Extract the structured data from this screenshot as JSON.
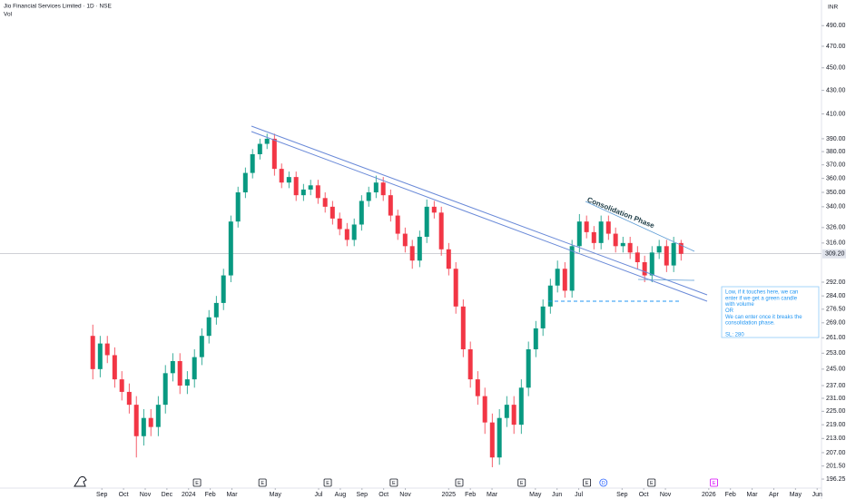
{
  "chart_data": {
    "type": "candlestick",
    "title": "Jio Financial Services Limited · 1D · NSE",
    "volume_label": "Vol",
    "currency": "INR",
    "log_scale": true,
    "grid": false,
    "up_color": "#089981",
    "down_color": "#f23645",
    "xlim": [
      -3.7,
      34.2
    ],
    "xticks": [
      {
        "value": 1,
        "label": "Sep"
      },
      {
        "value": 2,
        "label": "Oct"
      },
      {
        "value": 3,
        "label": "Nov"
      },
      {
        "value": 4,
        "label": "Dec"
      },
      {
        "value": 5,
        "label": "2024"
      },
      {
        "value": 6,
        "label": "Feb"
      },
      {
        "value": 7,
        "label": "Mar"
      },
      {
        "value": 9,
        "label": "May"
      },
      {
        "value": 11,
        "label": "Jul"
      },
      {
        "value": 12,
        "label": "Aug"
      },
      {
        "value": 13,
        "label": "Sep"
      },
      {
        "value": 14,
        "label": "Oct"
      },
      {
        "value": 15,
        "label": "Nov"
      },
      {
        "value": 17,
        "label": "2025"
      },
      {
        "value": 18,
        "label": "Feb"
      },
      {
        "value": 19,
        "label": "Mar"
      },
      {
        "value": 21,
        "label": "May"
      },
      {
        "value": 22,
        "label": "Jun"
      },
      {
        "value": 23,
        "label": "Jul"
      },
      {
        "value": 25,
        "label": "Sep"
      },
      {
        "value": 26,
        "label": "Oct"
      },
      {
        "value": 27,
        "label": "Nov"
      },
      {
        "value": 29,
        "label": "2026"
      },
      {
        "value": 30,
        "label": "Feb"
      },
      {
        "value": 31,
        "label": "Mar"
      },
      {
        "value": 32,
        "label": "Apr"
      },
      {
        "value": 33,
        "label": "May"
      },
      {
        "value": 34,
        "label": "Jun"
      }
    ],
    "ylim": [
      192,
      516
    ],
    "yticks": [
      {
        "value": 490,
        "label": "490.00"
      },
      {
        "value": 470,
        "label": "470.00"
      },
      {
        "value": 450,
        "label": "450.00"
      },
      {
        "value": 430,
        "label": "430.00"
      },
      {
        "value": 410,
        "label": "410.00"
      },
      {
        "value": 390,
        "label": "390.00"
      },
      {
        "value": 380,
        "label": "380.00"
      },
      {
        "value": 370,
        "label": "370.00"
      },
      {
        "value": 360,
        "label": "360.00"
      },
      {
        "value": 350,
        "label": "350.00"
      },
      {
        "value": 340,
        "label": "340.00"
      },
      {
        "value": 326,
        "label": "326.00"
      },
      {
        "value": 316,
        "label": "316.00"
      },
      {
        "value": 292,
        "label": "292.00"
      },
      {
        "value": 284,
        "label": "284.00"
      },
      {
        "value": 276.5,
        "label": "276.50"
      },
      {
        "value": 269,
        "label": "269.00"
      },
      {
        "value": 261,
        "label": "261.00"
      },
      {
        "value": 253,
        "label": "253.00"
      },
      {
        "value": 245,
        "label": "245.00"
      },
      {
        "value": 237,
        "label": "237.00"
      },
      {
        "value": 231,
        "label": "231.00"
      },
      {
        "value": 225,
        "label": "225.00"
      },
      {
        "value": 219,
        "label": "219.00"
      },
      {
        "value": 213,
        "label": "213.00"
      },
      {
        "value": 207,
        "label": "207.00"
      },
      {
        "value": 201.5,
        "label": "201.50"
      },
      {
        "value": 196.25,
        "label": "196.25"
      }
    ],
    "last_price": {
      "value": 309.2,
      "label": "309.20"
    },
    "x": [
      0.58,
      0.92,
      1.25,
      1.59,
      1.92,
      2.26,
      2.59,
      2.93,
      3.26,
      3.6,
      3.93,
      4.27,
      4.6,
      4.94,
      5.27,
      5.61,
      5.94,
      6.28,
      6.61,
      6.95,
      7.28,
      7.62,
      7.95,
      8.29,
      8.62,
      8.96,
      9.29,
      9.63,
      9.96,
      10.3,
      10.63,
      10.97,
      11.3,
      11.64,
      11.97,
      12.31,
      12.64,
      12.98,
      13.31,
      13.65,
      13.98,
      14.32,
      14.65,
      14.99,
      15.32,
      15.66,
      15.99,
      16.33,
      16.66,
      17.0,
      17.33,
      17.67,
      18.0,
      18.34,
      18.67,
      19.01,
      19.34,
      19.68,
      20.01,
      20.35,
      20.68,
      21.02,
      21.35,
      21.69,
      22.02,
      22.36,
      22.69,
      23.03,
      23.36,
      23.7,
      24.03,
      24.37,
      24.7,
      25.04,
      25.37,
      25.71,
      26.04,
      26.38,
      26.71,
      27.05,
      27.38,
      27.72
    ],
    "open": [
      262,
      245,
      258,
      252,
      240,
      234,
      228,
      214,
      222,
      218,
      228,
      243,
      249,
      237,
      240,
      251,
      262,
      272,
      280,
      296,
      330,
      350,
      364,
      378,
      386,
      390,
      367,
      357,
      361,
      348,
      352,
      355,
      346,
      340,
      332,
      325,
      318,
      328,
      344,
      350,
      357,
      348,
      334,
      322,
      314,
      305,
      320,
      340,
      336,
      312,
      300,
      278,
      255,
      240,
      232,
      220,
      205,
      222,
      228,
      219,
      236,
      255,
      266,
      278,
      290,
      300,
      287,
      314,
      330,
      323,
      316,
      330,
      322,
      314,
      316,
      310,
      304,
      296,
      310,
      314,
      302,
      316
    ],
    "high": [
      268,
      262,
      262,
      256,
      244,
      238,
      232,
      226,
      226,
      232,
      247,
      253,
      253,
      244,
      255,
      266,
      276,
      284,
      300,
      334,
      354,
      368,
      382,
      390,
      394,
      394,
      371,
      365,
      365,
      356,
      359,
      359,
      350,
      344,
      336,
      329,
      332,
      348,
      354,
      362,
      361,
      352,
      338,
      326,
      318,
      324,
      345,
      344,
      340,
      316,
      304,
      282,
      259,
      244,
      236,
      224,
      226,
      232,
      232,
      240,
      259,
      270,
      282,
      294,
      305,
      304,
      318,
      335,
      334,
      327,
      334,
      334,
      326,
      320,
      320,
      314,
      308,
      314,
      318,
      318,
      320,
      318
    ],
    "low": [
      240,
      241,
      248,
      236,
      230,
      224,
      205,
      210,
      214,
      214,
      224,
      239,
      233,
      233,
      236,
      247,
      258,
      268,
      276,
      292,
      326,
      346,
      360,
      374,
      382,
      362,
      353,
      353,
      344,
      344,
      348,
      342,
      336,
      328,
      321,
      314,
      314,
      324,
      340,
      346,
      344,
      330,
      318,
      310,
      300,
      301,
      316,
      332,
      308,
      296,
      274,
      251,
      236,
      228,
      215,
      201,
      202,
      218,
      215,
      215,
      232,
      251,
      262,
      274,
      286,
      283,
      283,
      310,
      319,
      312,
      312,
      318,
      310,
      310,
      306,
      300,
      292,
      292,
      306,
      298,
      298,
      305
    ],
    "close": [
      245,
      258,
      252,
      240,
      234,
      228,
      214,
      222,
      218,
      228,
      243,
      249,
      237,
      240,
      251,
      262,
      272,
      280,
      296,
      330,
      350,
      364,
      378,
      386,
      390,
      367,
      357,
      361,
      348,
      352,
      355,
      346,
      340,
      332,
      325,
      318,
      328,
      344,
      350,
      357,
      348,
      334,
      322,
      314,
      305,
      320,
      340,
      336,
      312,
      300,
      278,
      255,
      240,
      232,
      220,
      205,
      222,
      228,
      219,
      236,
      255,
      266,
      278,
      290,
      300,
      287,
      314,
      330,
      323,
      316,
      330,
      322,
      314,
      316,
      310,
      304,
      296,
      310,
      314,
      302,
      316,
      309.2
    ],
    "events": [
      {
        "label": "E",
        "x": 5.39
      },
      {
        "label": "E",
        "x": 8.41
      },
      {
        "label": "E",
        "x": 11.42
      },
      {
        "label": "E",
        "x": 14.47
      },
      {
        "label": "E",
        "x": 17.49
      },
      {
        "label": "E",
        "x": 20.37
      },
      {
        "label": "E",
        "x": 23.38
      },
      {
        "label": "D",
        "x": 24.14
      },
      {
        "label": "E",
        "x": 26.36
      },
      {
        "label": "E",
        "x": 29.24
      }
    ],
    "phase_label": "Consolidation Phase",
    "note": [
      "Low, if it touches here, we can",
      "enter if we get a green candle",
      "with volume",
      "OR",
      "We can enter once it breaks the",
      "consolidation phase.",
      "SL: 280"
    ]
  }
}
